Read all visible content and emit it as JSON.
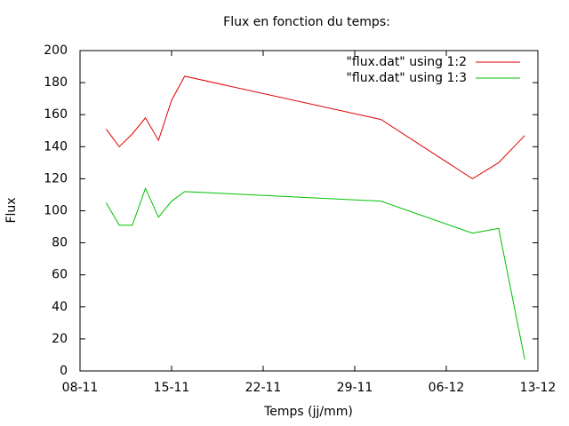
{
  "chart_data": {
    "type": "line",
    "title": "Flux en fonction du temps:",
    "x_label": "Temps (jj/mm)",
    "y_label": "Flux",
    "x": [
      "10-11",
      "11-11",
      "12-11",
      "13-11",
      "14-11",
      "15-11",
      "16-11",
      "01-12",
      "08-12",
      "10-12",
      "12-12"
    ],
    "series": [
      {
        "name": "\"flux.dat\" using 1:2",
        "color": "#e00000",
        "values": [
          151,
          140,
          148,
          158,
          144,
          169,
          184,
          157,
          120,
          130,
          147
        ]
      },
      {
        "name": "\"flux.dat\" using 1:3",
        "color": "#00c000",
        "values": [
          105,
          91,
          91,
          114,
          96,
          106,
          112,
          106,
          86,
          89,
          7
        ]
      }
    ],
    "xlim": [
      "08-11",
      "13-12"
    ],
    "xticks": [
      "08-11",
      "15-11",
      "22-11",
      "29-11",
      "06-12",
      "13-12"
    ],
    "ylim": [
      0,
      200
    ],
    "yticks": [
      0,
      20,
      40,
      60,
      80,
      100,
      120,
      140,
      160,
      180,
      200
    ],
    "legend": "top-right",
    "grid": false
  }
}
